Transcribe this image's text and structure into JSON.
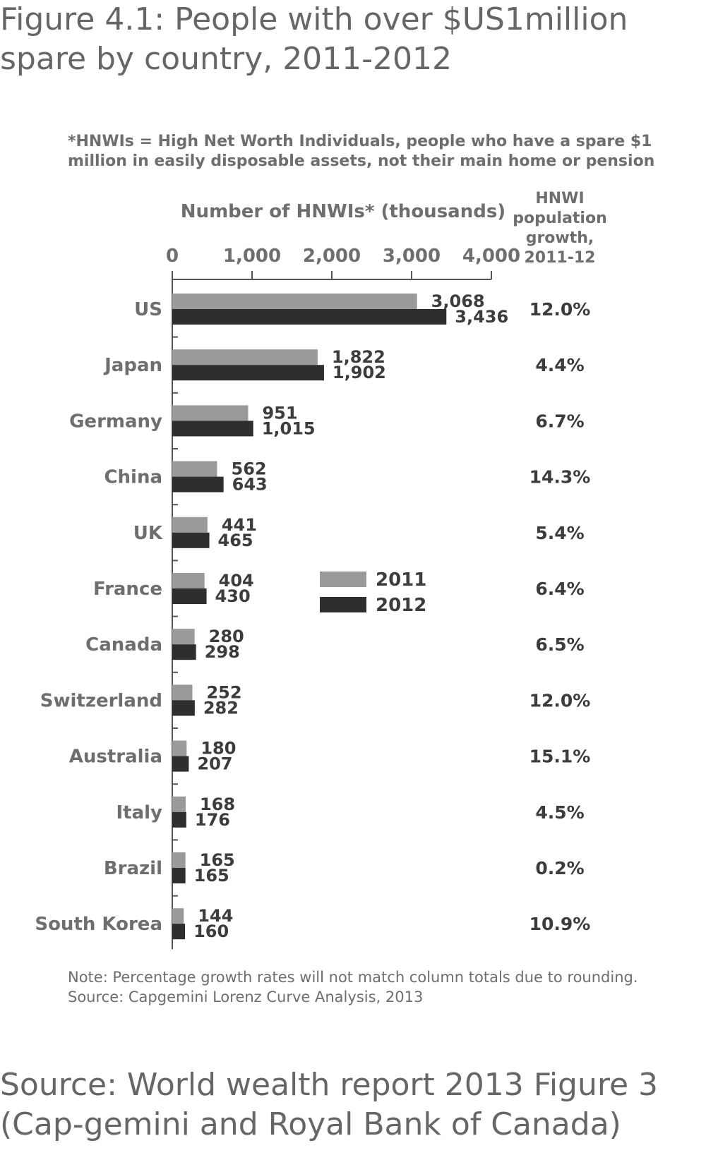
{
  "figure_title": "Figure 4.1: People with over $US1million spare by country, 2011-2012",
  "footer_source": "Source: World wealth report 2013 Figure 3 (Cap-gemini and Royal Bank of Canada)",
  "colors": {
    "series_2011": "#9a9a9a",
    "series_2012": "#2e2e2e",
    "text": "#3c3c3c",
    "muted_text": "#6e6e6e",
    "axis": "#555555"
  },
  "chart_data": {
    "type": "bar",
    "orientation": "horizontal",
    "footnote": [
      "*HNWIs = High Net Worth Individuals, people who have a spare $1",
      "million in easily disposable assets, not their main home or pension"
    ],
    "xlabel": "Number of HNWIs* (thousands)",
    "xlim": [
      0,
      4000
    ],
    "xticks": [
      0,
      1000,
      2000,
      3000,
      4000
    ],
    "xtick_labels": [
      "0",
      "1,000",
      "2,000",
      "3,000",
      "4,000"
    ],
    "growth_header": [
      "HNWI",
      "population",
      "growth,",
      "2011-12"
    ],
    "categories": [
      "US",
      "Japan",
      "Germany",
      "China",
      "UK",
      "France",
      "Canada",
      "Switzerland",
      "Australia",
      "Italy",
      "Brazil",
      "South Korea"
    ],
    "series": [
      {
        "name": "2011",
        "values": [
          3068,
          1822,
          951,
          562,
          441,
          404,
          280,
          252,
          180,
          168,
          165,
          144
        ],
        "labels": [
          "3,068",
          "1,822",
          "951",
          "562",
          "441",
          "404",
          "280",
          "252",
          "180",
          "168",
          "165",
          "144"
        ]
      },
      {
        "name": "2012",
        "values": [
          3436,
          1902,
          1015,
          643,
          465,
          430,
          298,
          282,
          207,
          176,
          165,
          160
        ],
        "labels": [
          "3,436",
          "1,902",
          "1,015",
          "643",
          "465",
          "430",
          "298",
          "282",
          "207",
          "176",
          "165",
          "160"
        ]
      }
    ],
    "growth": [
      "12.0%",
      "4.4%",
      "6.7%",
      "14.3%",
      "5.4%",
      "6.4%",
      "6.5%",
      "12.0%",
      "15.1%",
      "4.5%",
      "0.2%",
      "10.9%"
    ],
    "legend_position": "center-right",
    "grid": false,
    "notes": [
      "Note: Percentage growth rates will not match column totals due to rounding.",
      "Source: Capgemini Lorenz Curve Analysis, 2013"
    ]
  }
}
